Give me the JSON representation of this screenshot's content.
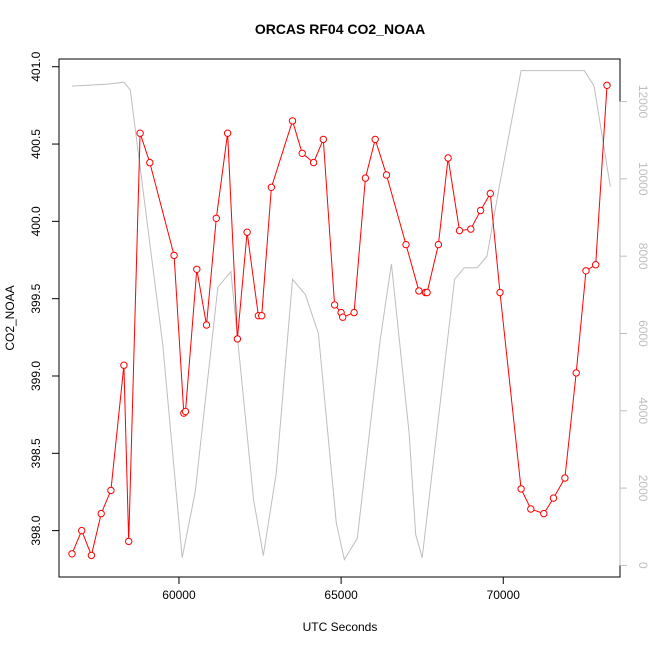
{
  "chart_data": {
    "type": "line",
    "title": "ORCAS RF04 CO2_NOAA",
    "xlabel": "UTC Seconds",
    "ylabel": "CO2_NOAA",
    "xlim": [
      56300,
      73600
    ],
    "ylim": [
      397.7,
      401.05
    ],
    "y2lim": [
      -300,
      13100
    ],
    "xticks": [
      {
        "value": 60000,
        "label": "60000"
      },
      {
        "value": 65000,
        "label": "65000"
      },
      {
        "value": 70000,
        "label": "70000"
      }
    ],
    "yticks": [
      {
        "value": 398.0,
        "label": "398.0"
      },
      {
        "value": 398.5,
        "label": "398.5"
      },
      {
        "value": 399.0,
        "label": "399.0"
      },
      {
        "value": 399.5,
        "label": "399.5"
      },
      {
        "value": 400.0,
        "label": "400.0"
      },
      {
        "value": 400.5,
        "label": "400.5"
      },
      {
        "value": 401.0,
        "label": "401.0"
      }
    ],
    "y2ticks": [
      {
        "value": 0,
        "label": "0"
      },
      {
        "value": 2000,
        "label": "2000"
      },
      {
        "value": 4000,
        "label": "4000"
      },
      {
        "value": 6000,
        "label": "6000"
      },
      {
        "value": 8000,
        "label": "8000"
      },
      {
        "value": 10000,
        "label": "10000"
      },
      {
        "value": 12000,
        "label": "12000"
      }
    ],
    "grid": false,
    "series": [
      {
        "color": "#ff0000",
        "style": "line-with-open-circles",
        "axis": "left",
        "x": [
          56700,
          57000,
          57300,
          57600,
          57900,
          58300,
          58450,
          58800,
          59100,
          59850,
          60150,
          60200,
          60550,
          60850,
          61150,
          61500,
          61800,
          62100,
          62450,
          62550,
          62850,
          63500,
          63800,
          64150,
          64450,
          64800,
          65000,
          65050,
          65400,
          65750,
          66050,
          66400,
          67000,
          67400,
          67600,
          67650,
          68000,
          68300,
          68650,
          69000,
          69300,
          69600,
          69900,
          70550,
          70850,
          71250,
          71550,
          71900,
          72250,
          72550,
          72850,
          73200
        ],
        "y": [
          397.85,
          398.0,
          397.84,
          398.11,
          398.26,
          399.07,
          397.93,
          400.57,
          400.38,
          399.78,
          398.76,
          398.77,
          399.69,
          399.33,
          400.02,
          400.57,
          399.24,
          399.93,
          399.39,
          399.39,
          400.22,
          400.65,
          400.44,
          400.38,
          400.53,
          399.46,
          399.41,
          399.38,
          399.41,
          400.28,
          400.53,
          400.3,
          399.85,
          399.55,
          399.54,
          399.54,
          399.85,
          400.41,
          399.94,
          399.95,
          400.07,
          400.18,
          399.54,
          398.27,
          398.14,
          398.11,
          398.21,
          398.34,
          399.02,
          399.68,
          399.72,
          400.88
        ]
      },
      {
        "color": "#bebebe",
        "style": "line",
        "axis": "right",
        "x": [
          56700,
          57800,
          58300,
          58500,
          58800,
          59500,
          60100,
          60500,
          61200,
          61600,
          62300,
          62600,
          63000,
          63500,
          63900,
          64300,
          64850,
          65100,
          65500,
          66200,
          66550,
          67100,
          67300,
          67500,
          68500,
          68800,
          69200,
          69500,
          69900,
          70550,
          71500,
          72500,
          72800,
          73300
        ],
        "y": [
          12400,
          12450,
          12500,
          12300,
          10300,
          5700,
          200,
          1900,
          7200,
          7600,
          1700,
          250,
          2400,
          7400,
          7000,
          6000,
          1100,
          150,
          700,
          5800,
          7800,
          3400,
          800,
          200,
          7400,
          7700,
          7700,
          8000,
          9900,
          12800,
          12800,
          12800,
          12400,
          9800
        ]
      }
    ]
  }
}
